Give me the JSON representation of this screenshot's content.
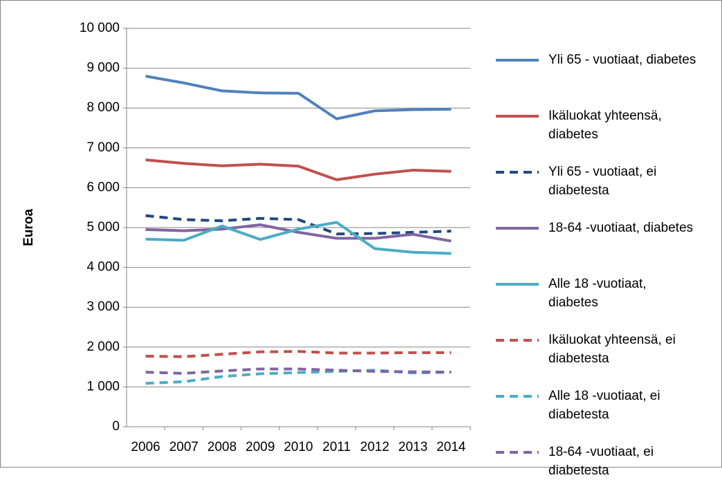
{
  "chart_data": {
    "type": "line",
    "y_label": "Euroa",
    "categories": [
      "2006",
      "2007",
      "2008",
      "2009",
      "2010",
      "2011",
      "2012",
      "2013",
      "2014"
    ],
    "ylim": [
      0,
      10000
    ],
    "yticks": [
      0,
      {
        "value": 1000,
        "label": "1 000"
      },
      {
        "value": 2000,
        "label": "2 000"
      },
      {
        "value": 3000,
        "label": "3 000"
      },
      {
        "value": 4000,
        "label": "4 000"
      },
      {
        "value": 5000,
        "label": "5 000"
      },
      {
        "value": 6000,
        "label": "6 000"
      },
      {
        "value": 7000,
        "label": "7 000"
      },
      {
        "value": 8000,
        "label": "8 000"
      },
      {
        "value": 9000,
        "label": "9 000"
      },
      {
        "value": 10000,
        "label": "10 000"
      }
    ],
    "grid": true,
    "legend": "right",
    "series": [
      {
        "name": "Yli 65 - vuotiaat, diabetes",
        "color": "#4f81bd",
        "dashed": false,
        "values": [
          8800,
          8630,
          8430,
          8380,
          8370,
          7730,
          7930,
          7960,
          7970
        ]
      },
      {
        "name": "Ikäluokat yhteensä, diabetes",
        "color": "#c0504d",
        "dashed": false,
        "values": [
          6700,
          6610,
          6550,
          6590,
          6540,
          6200,
          6340,
          6440,
          6410
        ]
      },
      {
        "name": "Yli 65 - vuotiaat, ei diabetesta",
        "color": "#1f497d",
        "dashed": true,
        "values": [
          5300,
          5200,
          5170,
          5230,
          5200,
          4840,
          4850,
          4880,
          4910
        ]
      },
      {
        "name": "18-64 -vuotiaat, diabetes",
        "color": "#8064a2",
        "dashed": false,
        "values": [
          4950,
          4920,
          4960,
          5070,
          4880,
          4730,
          4730,
          4830,
          4660
        ]
      },
      {
        "name": "Alle 18 -vuotiaat, diabetes",
        "color": "#4bacc6",
        "dashed": false,
        "values": [
          4710,
          4680,
          5040,
          4700,
          4960,
          5130,
          4470,
          4380,
          4350
        ]
      },
      {
        "name": "Ikäluokat yhteensä, ei diabetesta",
        "color": "#c0504d",
        "dashed": true,
        "values": [
          1770,
          1760,
          1820,
          1880,
          1890,
          1850,
          1850,
          1860,
          1860
        ]
      },
      {
        "name": "Alle 18 -vuotiaat, ei diabetesta",
        "color": "#4bacc6",
        "dashed": true,
        "values": [
          1090,
          1130,
          1260,
          1330,
          1360,
          1390,
          1420,
          1350,
          1370
        ]
      },
      {
        "name": "18-64 -vuotiaat, ei diabetesta",
        "color": "#8064a2",
        "dashed": true,
        "values": [
          1370,
          1340,
          1400,
          1450,
          1450,
          1420,
          1390,
          1380,
          1370
        ]
      }
    ]
  }
}
